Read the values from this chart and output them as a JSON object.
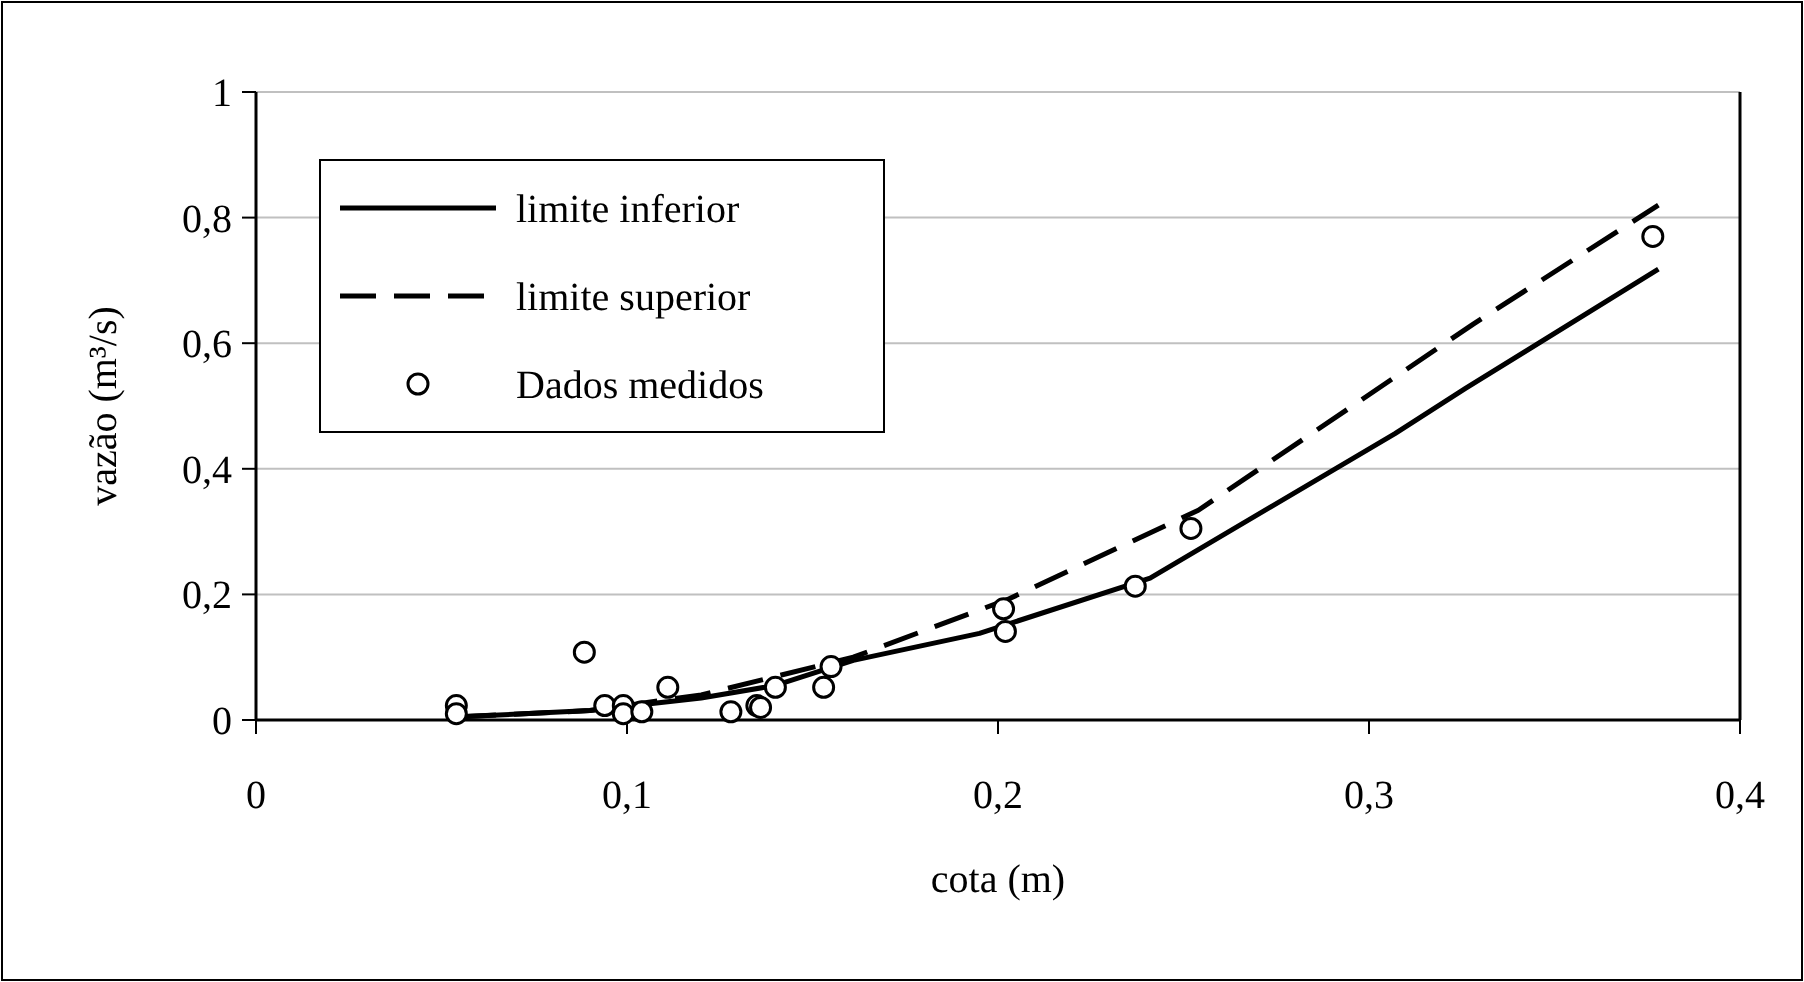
{
  "chart_data": {
    "type": "line",
    "xlabel": "cota (m)",
    "ylabel": "vazão (m³/s)",
    "xlim": [
      0,
      0.4
    ],
    "xticks": [
      {
        "value": 0,
        "label": "0"
      },
      {
        "value": 0.1,
        "label": "0,1"
      },
      {
        "value": 0.2,
        "label": "0,2"
      },
      {
        "value": 0.3,
        "label": "0,3"
      },
      {
        "value": 0.4,
        "label": "0,4"
      }
    ],
    "ylim": [
      0,
      1
    ],
    "yticks": [
      {
        "value": 0,
        "label": "0"
      },
      {
        "value": 0.2,
        "label": "0,2"
      },
      {
        "value": 0.4,
        "label": "0,4"
      },
      {
        "value": 0.6,
        "label": "0,6"
      },
      {
        "value": 0.8,
        "label": "0,8"
      },
      {
        "value": 1,
        "label": "1"
      }
    ],
    "grid": "y",
    "legend": "top left",
    "series": [
      {
        "name": "limite inferior",
        "color": "#000000",
        "line_style": "solid",
        "x": [
          0.055,
          0.09,
          0.12,
          0.14,
          0.161,
          0.195,
          0.241,
          0.307,
          0.326,
          0.378
        ],
        "values": [
          0.005,
          0.015,
          0.035,
          0.055,
          0.095,
          0.138,
          0.226,
          0.456,
          0.528,
          0.718
        ]
      },
      {
        "name": "limite superior",
        "color": "#000000",
        "line_style": "dashed",
        "x": [
          0.055,
          0.09,
          0.12,
          0.161,
          0.203,
          0.254,
          0.328,
          0.378
        ],
        "values": [
          0.005,
          0.015,
          0.04,
          0.1,
          0.193,
          0.334,
          0.63,
          0.82
        ]
      },
      {
        "name": "Dados medidos",
        "type": "scatter",
        "color": "#000000",
        "marker": "circle",
        "x": [
          0.054,
          0.054,
          0.0885,
          0.094,
          0.099,
          0.099,
          0.104,
          0.111,
          0.128,
          0.135,
          0.136,
          0.14,
          0.153,
          0.155,
          0.2015,
          0.202,
          0.237,
          0.252,
          0.3765
        ],
        "values": [
          0.023,
          0.01,
          0.108,
          0.023,
          0.023,
          0.01,
          0.013,
          0.052,
          0.013,
          0.023,
          0.02,
          0.052,
          0.052,
          0.085,
          0.177,
          0.141,
          0.213,
          0.305,
          0.77
        ]
      }
    ]
  }
}
